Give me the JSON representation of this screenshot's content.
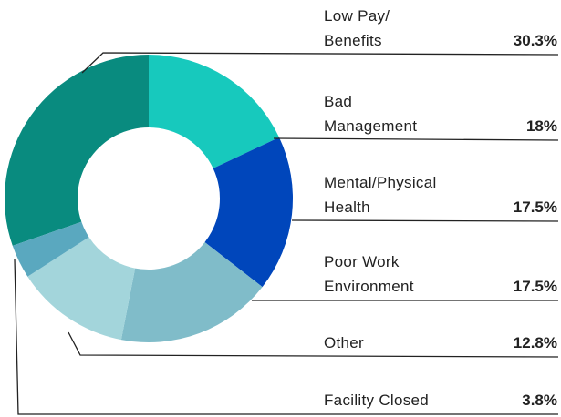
{
  "chart_data": {
    "type": "donut",
    "categories": [
      "Low Pay/\nBenefits",
      "Bad\nManagement",
      "Mental/Physical\nHealth",
      "Poor Work\nEnvironment",
      "Other",
      "Facility Closed"
    ],
    "values": [
      30.3,
      18,
      17.5,
      17.5,
      12.8,
      3.8
    ],
    "value_labels": [
      "30.3%",
      "18%",
      "17.5%",
      "17.5%",
      "12.8%",
      "3.8%"
    ],
    "colors": [
      "#098b7f",
      "#17c9bd",
      "#0046bb",
      "#80bcc9",
      "#a3d5db",
      "#5aa8bf"
    ]
  }
}
